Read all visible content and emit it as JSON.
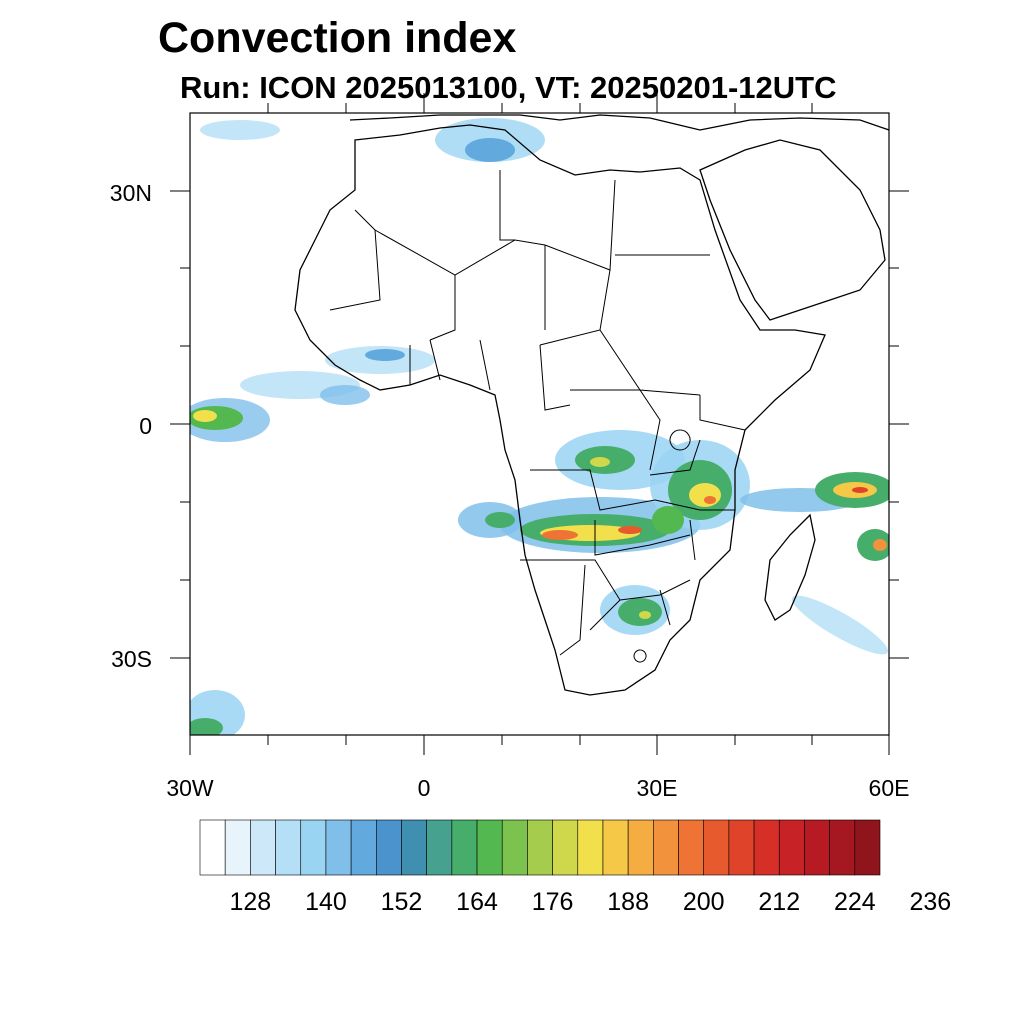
{
  "title": "Convection index",
  "subtitle": "Run: ICON 2025013100,  VT: 20250201-12UTC",
  "lat_labels": [
    "30N",
    "0",
    "30S"
  ],
  "lon_labels": [
    "30W",
    "0",
    "30E",
    "60E"
  ],
  "colorbar": {
    "tick_labels": [
      "128",
      "140",
      "152",
      "164",
      "176",
      "188",
      "200",
      "212",
      "224",
      "236"
    ],
    "colors": [
      "#ffffff",
      "#e8f4fc",
      "#cde8f8",
      "#b4dff6",
      "#9ad4f3",
      "#7fbfea",
      "#62a9dd",
      "#4a93cc",
      "#3f8fb0",
      "#46a28e",
      "#47ad6a",
      "#53b84f",
      "#7cc24e",
      "#a6cc4d",
      "#cfd74a",
      "#f1e04b",
      "#f6c847",
      "#f5ad42",
      "#f3923c",
      "#ee7334",
      "#e75a2e",
      "#df442a",
      "#d62f28",
      "#c72327",
      "#b81a24",
      "#a51821",
      "#8f141c"
    ]
  },
  "map": {
    "region": "Africa",
    "lon_range": [
      -30,
      60
    ],
    "lat_range": [
      -40,
      40
    ],
    "variable": "Convection index"
  }
}
